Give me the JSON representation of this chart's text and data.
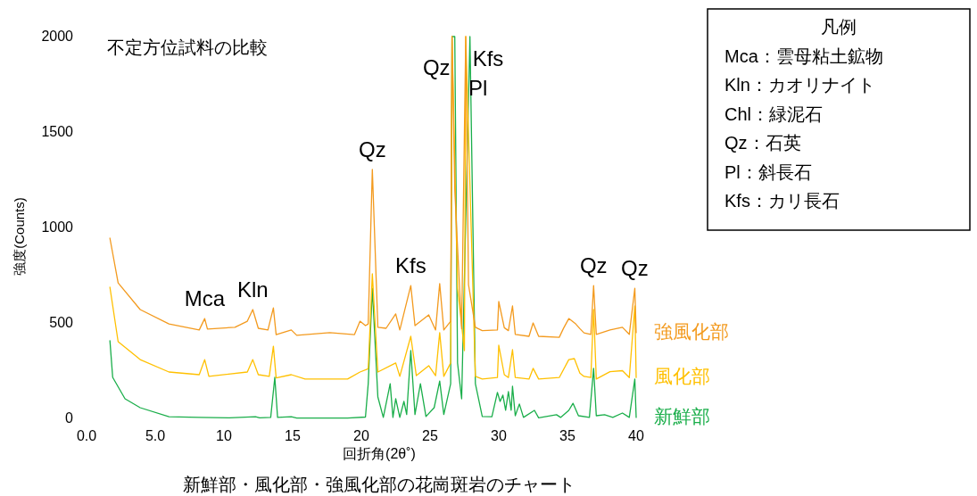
{
  "chart_data": {
    "type": "line",
    "title": "新鮮部・風化部・強風化部の花崗斑岩のチャート",
    "subtitle": "不定方位試料の比較",
    "xlabel": "回折角(2θ˚)",
    "ylabel": "強度(Counts)",
    "xlim": [
      0,
      40
    ],
    "ylim": [
      0,
      2000
    ],
    "xticks": [
      {
        "value": 0,
        "label": "0.0"
      },
      {
        "value": 5,
        "label": "5.0"
      },
      10,
      15,
      20,
      25,
      30,
      35,
      40
    ],
    "yticks": [
      0,
      500,
      1000,
      1500,
      2000
    ],
    "series": [
      {
        "name": "強風化部",
        "color": "#f39a1e",
        "x": [
          1.7,
          2.3,
          3.9,
          6.0,
          8.2,
          8.6,
          8.8,
          10.8,
          11.7,
          12.1,
          12.5,
          13.2,
          13.6,
          13.8,
          14.9,
          15.3,
          17.7,
          19.5,
          19.9,
          20.3,
          20.5,
          20.8,
          21.2,
          21.8,
          22.5,
          22.8,
          23.6,
          23.9,
          24.9,
          25.4,
          25.7,
          26.0,
          26.5,
          26.6,
          26.8,
          27.0,
          27.3,
          27.6,
          27.8,
          28.3,
          28.8,
          29.9,
          30.0,
          30.4,
          30.7,
          31.0,
          31.2,
          32.2,
          32.5,
          32.9,
          34.4,
          34.7,
          35.1,
          35.6,
          35.9,
          36.2,
          36.7,
          36.9,
          37.1,
          38.1,
          39.0,
          39.5,
          39.9,
          40.0
        ],
        "values": [
          944,
          710,
          570,
          495,
          463,
          523,
          468,
          477,
          509,
          570,
          472,
          463,
          579,
          439,
          463,
          435,
          449,
          439,
          509,
          486,
          495,
          1304,
          477,
          472,
          547,
          463,
          696,
          486,
          542,
          463,
          706,
          463,
          509,
          2000,
          1200,
          897,
          470,
          2000,
          700,
          477,
          460,
          463,
          612,
          475,
          460,
          589,
          440,
          430,
          500,
          430,
          425,
          470,
          523,
          495,
          470,
          448,
          440,
          696,
          440,
          463,
          477,
          440,
          682,
          449
        ]
      },
      {
        "name": "風化部",
        "color": "#ffc000",
        "x": [
          1.7,
          2.3,
          3.9,
          6.0,
          8.2,
          8.6,
          8.9,
          11.7,
          12.1,
          12.5,
          13.3,
          13.6,
          13.8,
          14.9,
          15.9,
          19.0,
          19.9,
          20.5,
          20.8,
          21.2,
          22.5,
          22.8,
          23.6,
          24.0,
          24.9,
          25.4,
          25.7,
          26.0,
          26.5,
          26.6,
          27.0,
          27.5,
          27.6,
          28.3,
          28.8,
          29.9,
          30.0,
          30.4,
          30.7,
          31.0,
          31.2,
          32.2,
          32.5,
          32.9,
          34.4,
          35.1,
          35.5,
          35.9,
          36.2,
          36.7,
          36.9,
          37.1,
          38.1,
          39.0,
          39.5,
          39.9,
          40.0
        ],
        "values": [
          687,
          402,
          308,
          243,
          229,
          308,
          220,
          243,
          308,
          229,
          220,
          378,
          212,
          229,
          206,
          206,
          243,
          260,
          757,
          243,
          290,
          220,
          430,
          224,
          276,
          224,
          449,
          220,
          290,
          2000,
          682,
          355,
          2000,
          220,
          206,
          214,
          383,
          229,
          214,
          360,
          214,
          206,
          262,
          206,
          214,
          308,
          313,
          237,
          220,
          214,
          570,
          206,
          245,
          250,
          214,
          589,
          214
        ]
      },
      {
        "name": "新鮮部",
        "color": "#1aae4a",
        "x": [
          1.7,
          1.9,
          2.8,
          3.9,
          6.0,
          8.2,
          10.4,
          12.3,
          12.6,
          13.4,
          13.7,
          13.9,
          14.9,
          15.3,
          19.0,
          20.3,
          20.5,
          20.8,
          21.2,
          21.6,
          22.1,
          22.3,
          22.5,
          22.8,
          23.1,
          23.3,
          23.6,
          23.9,
          24.3,
          24.7,
          25.3,
          25.7,
          26.0,
          26.5,
          26.6,
          26.8,
          27.0,
          27.3,
          27.9,
          28.3,
          28.8,
          29.5,
          29.9,
          30.1,
          30.3,
          30.5,
          30.7,
          30.9,
          31.0,
          31.2,
          31.5,
          31.8,
          32.6,
          32.9,
          34.2,
          34.5,
          35.1,
          35.4,
          35.8,
          36.6,
          36.9,
          37.1,
          37.7,
          38.3,
          39.0,
          39.5,
          39.9,
          40.0
        ],
        "values": [
          407,
          215,
          103,
          56,
          9,
          5,
          3,
          9,
          3,
          5,
          215,
          5,
          9,
          2,
          2,
          7,
          182,
          682,
          112,
          5,
          182,
          5,
          103,
          5,
          89,
          20,
          355,
          20,
          182,
          10,
          56,
          196,
          20,
          182,
          2000,
          2000,
          290,
          103,
          2000,
          182,
          10,
          9,
          136,
          89,
          122,
          43,
          140,
          43,
          168,
          14,
          75,
          5,
          42,
          3,
          19,
          5,
          42,
          79,
          14,
          5,
          262,
          14,
          19,
          5,
          28,
          5,
          206,
          5
        ]
      }
    ],
    "annotations": [
      {
        "text": "Mca",
        "x": 8.6,
        "y": 523
      },
      {
        "text": "Kln",
        "x": 12.1,
        "y": 570
      },
      {
        "text": "Qz",
        "x": 20.8,
        "y": 1304
      },
      {
        "text": "Kfs",
        "x": 23.6,
        "y": 696
      },
      {
        "text": "Qz",
        "x": 26.6,
        "y": 2000
      },
      {
        "text": "Pl",
        "x": 27.6,
        "y": 2000
      },
      {
        "text": "Kfs",
        "x": 27.9,
        "y": 2000
      },
      {
        "text": "Qz",
        "x": 36.9,
        "y": 696
      },
      {
        "text": "Qz",
        "x": 39.9,
        "y": 682
      },
      "凡例",
      "Mca：雲母粘土鉱物",
      "Kln：カオリナイト",
      "Chl：緑泥石",
      "Qz：石英",
      "Pl：斜長石",
      "Kfs：カリ長石"
    ]
  }
}
